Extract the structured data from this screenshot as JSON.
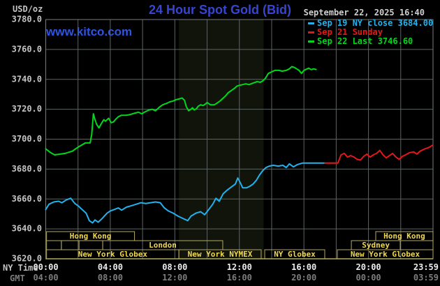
{
  "header": {
    "units_label": "USD/oz",
    "title": "24 Hour Spot Gold (Bid)",
    "datetime": "September 22, 2025 16:40",
    "watermark": "www.kitco.com"
  },
  "axis": {
    "ny_time_label": "NY Time",
    "gmt_label": "GMT"
  },
  "colors": {
    "background": "#000000",
    "title_blue": "#3446d2",
    "kitco_blue": "#2f55e0",
    "text_gray": "#c4c4c4",
    "text_bright": "#ededed",
    "text_dim": "#7d7d7d",
    "grid": "#5c6464",
    "border": "#7a7a7a",
    "session_border": "#b3a960",
    "session_text": "#f0d850",
    "band": "#10140a",
    "cyan": "#22b2ee",
    "red": "#e61717",
    "green": "#00d81c"
  },
  "chart_data": {
    "type": "line",
    "title": "24 Hour Spot Gold (Bid)",
    "ylabel": "USD/oz",
    "x_axis": "NY Time (hours 0-24)",
    "ylim": [
      3620,
      3780
    ],
    "ytick_step": 20,
    "y_tick_labels": [
      "3780.0",
      "3760.0",
      "3740.0",
      "3720.0",
      "3700.0",
      "3680.0",
      "3660.0",
      "3640.0",
      "3620.0"
    ],
    "x_ticks": [
      {
        "h": 0,
        "ny": "00:00",
        "gmt": "04:00",
        "end": false
      },
      {
        "h": 4,
        "ny": "04:00",
        "gmt": "08:00",
        "end": false
      },
      {
        "h": 8,
        "ny": "08:00",
        "gmt": "12:00",
        "end": false
      },
      {
        "h": 12,
        "ny": "12:00",
        "gmt": "16:00",
        "end": false
      },
      {
        "h": 16,
        "ny": "16:00",
        "gmt": "20:00",
        "end": false
      },
      {
        "h": 20,
        "ny": "20:00",
        "gmt": "00:00",
        "end": false
      },
      {
        "h": 23.98,
        "ny": "23:59",
        "gmt": "03:59",
        "end": true
      }
    ],
    "grid_hours": [
      2,
      4,
      6,
      8,
      10,
      12,
      14,
      16,
      18,
      20,
      22
    ],
    "nymex_band_hours": [
      8.25,
      13.5
    ],
    "legend_note": "dash markers colored per series",
    "series": [
      {
        "name": "Sep 19 NY close 3684.00",
        "color_key": "cyan",
        "points": [
          [
            0,
            3653
          ],
          [
            0.2,
            3656.5
          ],
          [
            0.5,
            3658
          ],
          [
            0.8,
            3658.5
          ],
          [
            1.0,
            3657.5
          ],
          [
            1.3,
            3659.5
          ],
          [
            1.55,
            3660.5
          ],
          [
            1.8,
            3657
          ],
          [
            2.0,
            3655.5
          ],
          [
            2.2,
            3653.5
          ],
          [
            2.5,
            3650.5
          ],
          [
            2.7,
            3645.5
          ],
          [
            2.9,
            3644
          ],
          [
            3.05,
            3646
          ],
          [
            3.25,
            3644.5
          ],
          [
            3.5,
            3647
          ],
          [
            3.8,
            3650.5
          ],
          [
            4.0,
            3652
          ],
          [
            4.25,
            3653
          ],
          [
            4.5,
            3654
          ],
          [
            4.7,
            3652.5
          ],
          [
            5.0,
            3654.5
          ],
          [
            5.3,
            3655.5
          ],
          [
            5.6,
            3656.5
          ],
          [
            5.9,
            3657.5
          ],
          [
            6.2,
            3657
          ],
          [
            6.5,
            3657.5
          ],
          [
            6.8,
            3658
          ],
          [
            7.1,
            3657.5
          ],
          [
            7.35,
            3654
          ],
          [
            7.6,
            3652
          ],
          [
            7.9,
            3650.5
          ],
          [
            8.2,
            3648.5
          ],
          [
            8.5,
            3647
          ],
          [
            8.8,
            3645.5
          ],
          [
            9.0,
            3648.5
          ],
          [
            9.3,
            3650.5
          ],
          [
            9.6,
            3651.5
          ],
          [
            9.85,
            3649.5
          ],
          [
            10.1,
            3653
          ],
          [
            10.35,
            3656.5
          ],
          [
            10.55,
            3660.5
          ],
          [
            10.75,
            3658.5
          ],
          [
            11.0,
            3663.5
          ],
          [
            11.25,
            3666
          ],
          [
            11.5,
            3668
          ],
          [
            11.75,
            3670
          ],
          [
            11.9,
            3674
          ],
          [
            12.05,
            3671
          ],
          [
            12.2,
            3667.5
          ],
          [
            12.45,
            3667.5
          ],
          [
            12.65,
            3668.5
          ],
          [
            12.85,
            3670
          ],
          [
            13.05,
            3672.5
          ],
          [
            13.25,
            3676
          ],
          [
            13.45,
            3679
          ],
          [
            13.65,
            3681
          ],
          [
            13.85,
            3682
          ],
          [
            14.1,
            3682.5
          ],
          [
            14.4,
            3682
          ],
          [
            14.7,
            3682.5
          ],
          [
            14.9,
            3681
          ],
          [
            15.1,
            3683.5
          ],
          [
            15.35,
            3681.5
          ],
          [
            15.6,
            3683
          ],
          [
            15.9,
            3684
          ],
          [
            16.5,
            3684
          ],
          [
            17.3,
            3684
          ]
        ]
      },
      {
        "name": "Sep 21 Sunday",
        "color_key": "red",
        "points": [
          [
            17.3,
            3684
          ],
          [
            18.1,
            3684
          ],
          [
            18.3,
            3689.5
          ],
          [
            18.5,
            3690.5
          ],
          [
            18.7,
            3688
          ],
          [
            18.9,
            3689
          ],
          [
            19.1,
            3688
          ],
          [
            19.3,
            3686.5
          ],
          [
            19.5,
            3686
          ],
          [
            19.7,
            3688.5
          ],
          [
            19.9,
            3690
          ],
          [
            20.1,
            3688
          ],
          [
            20.3,
            3689.5
          ],
          [
            20.5,
            3690.5
          ],
          [
            20.7,
            3692.5
          ],
          [
            20.9,
            3689.5
          ],
          [
            21.1,
            3687.5
          ],
          [
            21.3,
            3689
          ],
          [
            21.5,
            3690.5
          ],
          [
            21.7,
            3688
          ],
          [
            21.9,
            3686.5
          ],
          [
            22.1,
            3688.5
          ],
          [
            22.3,
            3689.5
          ],
          [
            22.55,
            3691
          ],
          [
            22.8,
            3691.5
          ],
          [
            23.0,
            3690
          ],
          [
            23.2,
            3692
          ],
          [
            23.5,
            3693.5
          ],
          [
            23.75,
            3694.5
          ],
          [
            23.98,
            3696
          ]
        ]
      },
      {
        "name": "Sep 22 Last 3746.60",
        "color_key": "green",
        "points": [
          [
            0,
            3693.5
          ],
          [
            0.3,
            3691
          ],
          [
            0.55,
            3689.5
          ],
          [
            0.9,
            3690
          ],
          [
            1.2,
            3690.5
          ],
          [
            1.65,
            3692
          ],
          [
            2.05,
            3695
          ],
          [
            2.3,
            3696.5
          ],
          [
            2.45,
            3697.5
          ],
          [
            2.75,
            3697.5
          ],
          [
            2.85,
            3703
          ],
          [
            2.95,
            3717
          ],
          [
            3.05,
            3713
          ],
          [
            3.15,
            3710
          ],
          [
            3.3,
            3707.5
          ],
          [
            3.45,
            3710.5
          ],
          [
            3.6,
            3713
          ],
          [
            3.7,
            3712
          ],
          [
            3.9,
            3714
          ],
          [
            4.05,
            3711
          ],
          [
            4.2,
            3711.5
          ],
          [
            4.35,
            3713.5
          ],
          [
            4.5,
            3715
          ],
          [
            4.7,
            3716
          ],
          [
            5.0,
            3716
          ],
          [
            5.25,
            3716.5
          ],
          [
            5.55,
            3717.5
          ],
          [
            5.75,
            3718
          ],
          [
            5.95,
            3717
          ],
          [
            6.2,
            3718.5
          ],
          [
            6.4,
            3719.5
          ],
          [
            6.6,
            3720
          ],
          [
            6.8,
            3719
          ],
          [
            7.05,
            3721.5
          ],
          [
            7.25,
            3723
          ],
          [
            7.5,
            3724
          ],
          [
            7.7,
            3725
          ],
          [
            7.9,
            3725.5
          ],
          [
            8.1,
            3726.5
          ],
          [
            8.3,
            3727
          ],
          [
            8.45,
            3727.5
          ],
          [
            8.6,
            3726
          ],
          [
            8.7,
            3722
          ],
          [
            8.85,
            3719
          ],
          [
            9.0,
            3720
          ],
          [
            9.1,
            3721
          ],
          [
            9.2,
            3719.5
          ],
          [
            9.35,
            3720.5
          ],
          [
            9.45,
            3722
          ],
          [
            9.6,
            3723
          ],
          [
            9.75,
            3722.5
          ],
          [
            9.9,
            3723.5
          ],
          [
            10.0,
            3724.5
          ],
          [
            10.2,
            3723
          ],
          [
            10.45,
            3723
          ],
          [
            10.6,
            3724
          ],
          [
            10.8,
            3725.5
          ],
          [
            10.95,
            3727
          ],
          [
            11.15,
            3729
          ],
          [
            11.3,
            3731
          ],
          [
            11.5,
            3732.5
          ],
          [
            11.7,
            3734
          ],
          [
            11.85,
            3735.5
          ],
          [
            12.0,
            3736
          ],
          [
            12.2,
            3736.5
          ],
          [
            12.4,
            3737
          ],
          [
            12.6,
            3736.5
          ],
          [
            12.85,
            3737.5
          ],
          [
            13.1,
            3738.5
          ],
          [
            13.3,
            3738
          ],
          [
            13.45,
            3739
          ],
          [
            13.6,
            3740.5
          ],
          [
            13.8,
            3744
          ],
          [
            14.0,
            3745
          ],
          [
            14.2,
            3746
          ],
          [
            14.45,
            3746
          ],
          [
            14.65,
            3745.5
          ],
          [
            14.9,
            3746
          ],
          [
            15.1,
            3747
          ],
          [
            15.25,
            3748.5
          ],
          [
            15.4,
            3748
          ],
          [
            15.55,
            3747
          ],
          [
            15.7,
            3746
          ],
          [
            15.85,
            3744
          ],
          [
            16.0,
            3746
          ],
          [
            16.2,
            3747
          ],
          [
            16.3,
            3747.5
          ],
          [
            16.45,
            3746.5
          ],
          [
            16.6,
            3747
          ],
          [
            16.75,
            3746.6
          ]
        ]
      }
    ],
    "sessions": [
      {
        "row": 0,
        "start": 0.05,
        "end": 5.5,
        "label": "Hong Kong"
      },
      {
        "row": 0,
        "start": 20.45,
        "end": 24,
        "label": "Hong Kong"
      },
      {
        "row": 1,
        "start": 0.05,
        "end": 0.97,
        "label": ""
      },
      {
        "row": 1,
        "start": 0.97,
        "end": 2.06,
        "label": ""
      },
      {
        "row": 1,
        "start": 2.06,
        "end": 3.53,
        "label": ""
      },
      {
        "row": 1,
        "start": 3.53,
        "end": 10.97,
        "label": "London"
      },
      {
        "row": 1,
        "start": 18.94,
        "end": 21.97,
        "label": "Sydney"
      },
      {
        "row": 1,
        "start": 21.97,
        "end": 24,
        "label": ""
      },
      {
        "row": 2,
        "start": 0.05,
        "end": 8.25,
        "label": "New York Globex"
      },
      {
        "row": 2,
        "start": 8.25,
        "end": 13.35,
        "label": "New York NYMEX"
      },
      {
        "row": 2,
        "start": 13.57,
        "end": 17.29,
        "label": "NY Globex"
      },
      {
        "row": 2,
        "start": 18.07,
        "end": 24,
        "label": "New York Globex"
      }
    ]
  }
}
